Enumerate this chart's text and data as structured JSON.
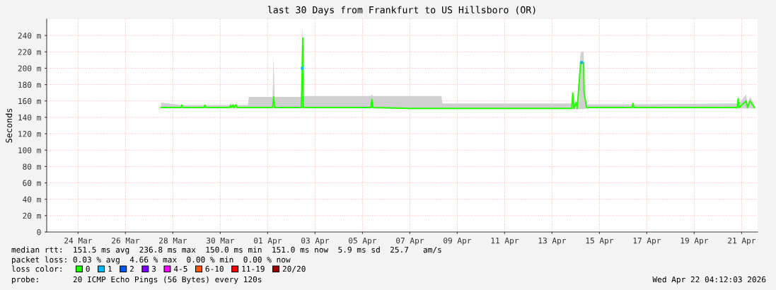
{
  "chart_data": {
    "type": "line",
    "title": "last 30 Days from Frankfurt to US Hillsboro (OR)",
    "ylabel": "Seconds",
    "legend_title": "loss color:",
    "legend": "bottom",
    "grid": true,
    "xlim": [
      "2026-03-23T04:12",
      "2026-04-22T04:12"
    ],
    "xticks": [
      {
        "value": "2026-03-24T12:00",
        "label": "24 Mar"
      },
      {
        "value": "2026-03-26T12:00",
        "label": "26 Mar"
      },
      {
        "value": "2026-03-28T12:00",
        "label": "28 Mar"
      },
      {
        "value": "2026-03-30T12:00",
        "label": "30 Mar"
      },
      {
        "value": "2026-04-01T12:00",
        "label": "01 Apr"
      },
      {
        "value": "2026-04-03T12:00",
        "label": "03 Apr"
      },
      {
        "value": "2026-04-05T12:00",
        "label": "05 Apr"
      },
      {
        "value": "2026-04-07T12:00",
        "label": "07 Apr"
      },
      {
        "value": "2026-04-09T12:00",
        "label": "09 Apr"
      },
      {
        "value": "2026-04-11T12:00",
        "label": "11 Apr"
      },
      {
        "value": "2026-04-13T12:00",
        "label": "13 Apr"
      },
      {
        "value": "2026-04-15T12:00",
        "label": "15 Apr"
      },
      {
        "value": "2026-04-17T12:00",
        "label": "17 Apr"
      },
      {
        "value": "2026-04-19T12:00",
        "label": "19 Apr"
      },
      {
        "value": "2026-04-21T12:00",
        "label": "21 Apr"
      }
    ],
    "ylim": [
      0,
      260
    ],
    "yticks": [
      0,
      {
        "value": 20,
        "label": "20 m"
      },
      {
        "value": 40,
        "label": "40 m"
      },
      {
        "value": 60,
        "label": "60 m"
      },
      {
        "value": 80,
        "label": "80 m"
      },
      {
        "value": 100,
        "label": "100 m"
      },
      {
        "value": 120,
        "label": "120 m"
      },
      {
        "value": 140,
        "label": "140 m"
      },
      {
        "value": 160,
        "label": "160 m"
      },
      {
        "value": 180,
        "label": "180 m"
      },
      {
        "value": 200,
        "label": "200 m"
      },
      {
        "value": 220,
        "label": "220 m"
      },
      {
        "value": 240,
        "label": "240 m"
      }
    ],
    "series": [
      {
        "name": "0",
        "color": "#26ff00",
        "x": [
          "2026-03-28T00:00",
          "2026-03-28T20:00",
          "2026-03-28T21:00",
          "2026-03-28T22:00",
          "2026-03-29T19:30",
          "2026-03-29T20:30",
          "2026-03-29T21:30",
          "2026-03-30T21:30",
          "2026-03-30T22:30",
          "2026-03-30T23:30",
          "2026-03-31T01:00",
          "2026-03-31T02:00",
          "2026-03-31T04:00",
          "2026-03-31T05:00",
          "2026-03-31T16:00",
          "2026-03-31T17:00",
          "2026-04-01T17:00",
          "2026-04-01T18:00",
          "2026-04-01T19:00",
          "2026-04-02T22:00",
          "2026-04-02T23:00",
          "2026-04-02T23:30",
          "2026-04-03T00:00",
          "2026-04-05T20:30",
          "2026-04-05T21:30",
          "2026-04-05T22:30",
          "2026-04-07T12:00",
          "2026-04-08T20:00",
          "2026-04-08T21:00",
          "2026-04-14T08:00",
          "2026-04-14T09:00",
          "2026-04-14T10:00",
          "2026-04-14T12:30",
          "2026-04-14T13:30",
          "2026-04-14T17:00",
          "2026-04-14T20:00",
          "2026-04-14T20:30",
          "2026-04-14T23:00",
          "2026-04-16T21:00",
          "2026-04-16T22:00",
          "2026-04-16T23:00",
          "2026-04-21T07:30",
          "2026-04-21T08:30",
          "2026-04-21T09:30",
          "2026-04-21T16:30",
          "2026-04-21T18:00",
          "2026-04-21T20:30",
          "2026-04-22T01:00"
        ],
        "values": [
          152,
          152,
          155,
          152,
          152,
          155,
          152,
          152,
          155,
          152,
          155,
          152,
          155,
          152,
          152,
          152,
          152,
          165,
          152,
          152,
          200,
          237,
          152,
          152,
          162,
          152,
          151,
          151,
          151,
          151,
          170,
          151,
          158,
          151,
          207,
          207,
          170,
          152,
          152,
          157,
          152,
          152,
          163,
          152,
          160,
          152,
          160,
          152
        ],
        "lower": [
          151,
          151,
          151,
          151,
          151,
          151,
          151,
          151,
          151,
          151,
          151,
          151,
          151,
          151,
          151,
          151,
          151,
          151,
          151,
          151,
          151,
          151,
          151,
          151,
          151,
          151,
          150,
          150,
          150,
          150,
          150,
          150,
          150,
          150,
          150,
          150,
          150,
          151,
          151,
          151,
          151,
          151,
          151,
          151,
          151,
          151,
          151,
          151
        ],
        "upper": [
          158,
          155,
          156,
          155,
          155,
          156,
          155,
          155,
          157,
          155,
          157,
          155,
          157,
          155,
          155,
          165,
          165,
          215,
          165,
          165,
          240,
          250,
          166,
          166,
          168,
          166,
          166,
          166,
          157,
          157,
          172,
          157,
          160,
          157,
          220,
          220,
          172,
          156,
          156,
          158,
          156,
          157,
          166,
          157,
          168,
          157,
          165,
          156
        ]
      },
      {
        "name": "1",
        "color": "#00b8ff",
        "type": "scatter",
        "x": [
          "2026-04-02T23:00",
          "2026-04-14T18:00"
        ],
        "values": [
          200,
          207
        ]
      },
      {
        "name": "2",
        "color": "#0059ff",
        "type": "scatter"
      },
      {
        "name": "3",
        "color": "#7e00ff",
        "type": "scatter"
      },
      {
        "name": "4-5",
        "color": "#ff00ff",
        "type": "scatter"
      },
      {
        "name": "6-10",
        "color": "#ff5500",
        "type": "scatter"
      },
      {
        "name": "11-19",
        "color": "#ff0000",
        "type": "scatter"
      },
      {
        "name": "20/20",
        "color": "#a10000",
        "type": "scatter"
      }
    ],
    "annotations": [
      "median rtt:  151.5 ms avg  236.8 ms max  150.0 ms min  151.0 ms now  5.9 ms sd  25.7   am/s",
      "packet loss: 0.03 % avg  4.66 % max  0.00 % min  0.00 % now",
      "probe:       20 ICMP Echo Pings (56 Bytes) every 120s",
      "Wed Apr 22 04:12:03 2026"
    ]
  }
}
